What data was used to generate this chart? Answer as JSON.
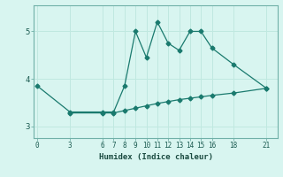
{
  "upper_x": [
    0,
    3,
    6,
    7,
    8,
    9,
    10,
    11,
    12,
    13,
    14,
    15,
    16,
    18,
    21
  ],
  "upper_y": [
    3.85,
    3.3,
    3.3,
    3.3,
    3.85,
    5.0,
    4.45,
    5.2,
    4.75,
    4.6,
    5.0,
    5.0,
    4.65,
    4.3,
    3.8
  ],
  "lower_x": [
    3,
    6,
    7,
    8,
    9,
    10,
    11,
    12,
    13,
    14,
    15,
    16,
    18,
    21
  ],
  "lower_y": [
    3.28,
    3.28,
    3.28,
    3.33,
    3.38,
    3.43,
    3.48,
    3.52,
    3.56,
    3.59,
    3.62,
    3.65,
    3.7,
    3.8
  ],
  "line_color": "#1a7a6e",
  "bg_color": "#d8f5f0",
  "grid_color": "#c0e8e0",
  "xlabel": "Humidex (Indice chaleur)",
  "xticks": [
    0,
    3,
    6,
    7,
    8,
    9,
    10,
    11,
    12,
    13,
    14,
    15,
    16,
    18,
    21
  ],
  "yticks": [
    3,
    4,
    5
  ],
  "ylim": [
    2.75,
    5.55
  ],
  "xlim": [
    -0.3,
    22.0
  ]
}
